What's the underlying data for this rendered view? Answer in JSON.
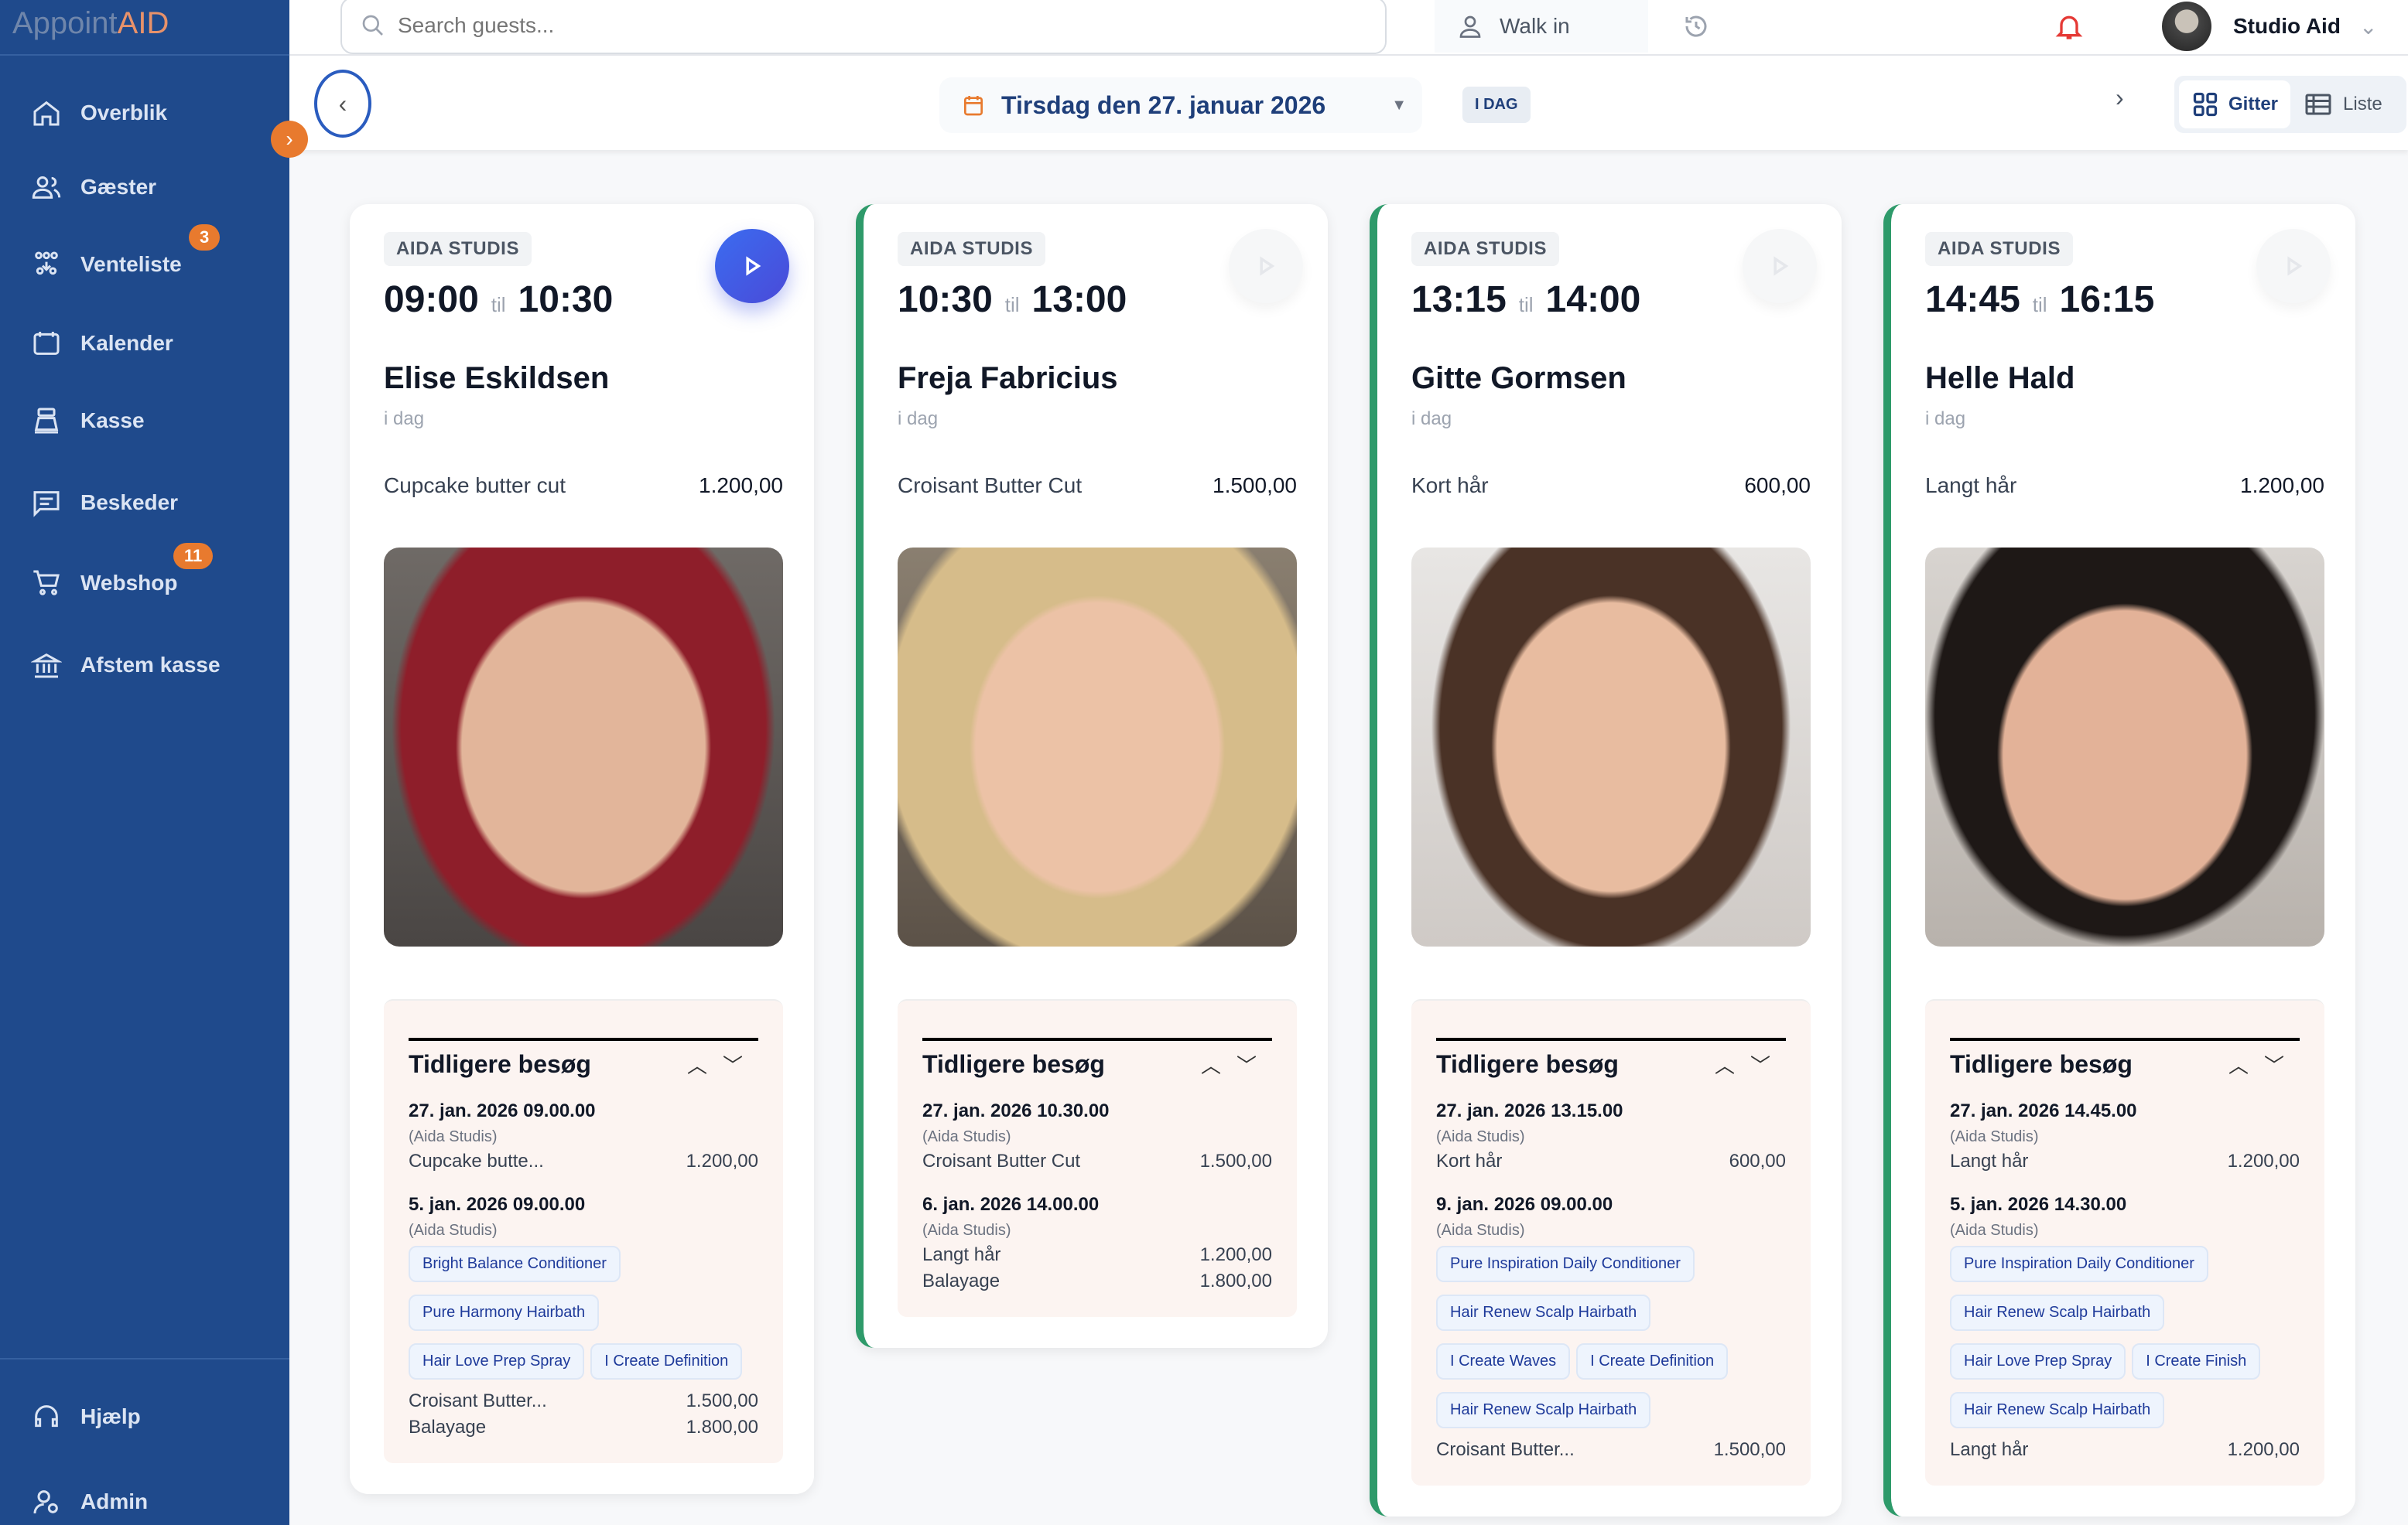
{
  "app": {
    "logo_a": "Appoint",
    "logo_b": "AID"
  },
  "sidebar": {
    "items": [
      {
        "label": "Overblik",
        "icon": "home-icon"
      },
      {
        "label": "Gæster",
        "icon": "users-icon"
      },
      {
        "label": "Venteliste",
        "icon": "waitlist-icon",
        "badge": "3"
      },
      {
        "label": "Kalender",
        "icon": "calendar-icon"
      },
      {
        "label": "Kasse",
        "icon": "cash-register-icon"
      },
      {
        "label": "Beskeder",
        "icon": "message-icon"
      },
      {
        "label": "Webshop",
        "icon": "cart-icon",
        "badge": "11"
      },
      {
        "label": "Afstem kasse",
        "icon": "bank-icon"
      }
    ],
    "bottom": [
      {
        "label": "Hjælp",
        "icon": "help-icon"
      },
      {
        "label": "Admin",
        "icon": "admin-icon"
      }
    ]
  },
  "topbar": {
    "search_placeholder": "Search guests...",
    "walk_in": "Walk in",
    "user": "Studio Aid"
  },
  "subbar": {
    "date": "Tirsdag den 27. januar 2026",
    "today": "I DAG",
    "view_grid": "Gitter",
    "view_list": "Liste"
  },
  "colors": {
    "sidebar": "#1f4a8c",
    "accent": "#e87a2e",
    "done": "#2e9a6a",
    "play": "#3b6cf0"
  },
  "cards": [
    {
      "studio": "AIDA STUDIS",
      "start": "09:00",
      "til": "til",
      "end": "10:30",
      "name": "Elise Eskildsen",
      "when": "i dag",
      "service": "Cupcake butter cut",
      "price": "1.200,00",
      "active": true,
      "done": false,
      "history_title": "Tidligere besøg",
      "visits": [
        {
          "date": "27. jan. 2026 09.00.00",
          "studio": "(Aida Studis)",
          "chips": [],
          "lines": [
            {
              "name": "Cupcake butte...",
              "price": "1.200,00"
            }
          ]
        },
        {
          "date": "5. jan. 2026 09.00.00",
          "studio": "(Aida Studis)",
          "chips": [
            [
              "Bright Balance Conditioner"
            ],
            [
              "Pure Harmony Hairbath"
            ],
            [
              "Hair Love Prep Spray",
              "I Create Definition"
            ]
          ],
          "lines": [
            {
              "name": "Croisant Butter...",
              "price": "1.500,00"
            },
            {
              "name": "Balayage",
              "price": "1.800,00"
            }
          ]
        }
      ]
    },
    {
      "studio": "AIDA STUDIS",
      "start": "10:30",
      "til": "til",
      "end": "13:00",
      "name": "Freja Fabricius",
      "when": "i dag",
      "service": "Croisant Butter Cut",
      "price": "1.500,00",
      "active": false,
      "done": true,
      "history_title": "Tidligere besøg",
      "visits": [
        {
          "date": "27. jan. 2026 10.30.00",
          "studio": "(Aida Studis)",
          "chips": [],
          "lines": [
            {
              "name": "Croisant Butter Cut",
              "price": "1.500,00"
            }
          ]
        },
        {
          "date": "6. jan. 2026 14.00.00",
          "studio": "(Aida Studis)",
          "chips": [],
          "lines": [
            {
              "name": "Langt hår",
              "price": "1.200,00"
            },
            {
              "name": "Balayage",
              "price": "1.800,00"
            }
          ]
        }
      ]
    },
    {
      "studio": "AIDA STUDIS",
      "start": "13:15",
      "til": "til",
      "end": "14:00",
      "name": "Gitte Gormsen",
      "when": "i dag",
      "service": "Kort hår",
      "price": "600,00",
      "active": false,
      "done": true,
      "history_title": "Tidligere besøg",
      "visits": [
        {
          "date": "27. jan. 2026 13.15.00",
          "studio": "(Aida Studis)",
          "chips": [],
          "lines": [
            {
              "name": "Kort hår",
              "price": "600,00"
            }
          ]
        },
        {
          "date": "9. jan. 2026 09.00.00",
          "studio": "(Aida Studis)",
          "chips": [
            [
              "Pure Inspiration Daily Conditioner"
            ],
            [
              "Hair Renew Scalp Hairbath"
            ],
            [
              "I Create Waves",
              "I Create Definition"
            ],
            [
              "Hair Renew Scalp Hairbath"
            ]
          ],
          "lines": [
            {
              "name": "Croisant Butter...",
              "price": "1.500,00"
            }
          ]
        }
      ]
    },
    {
      "studio": "AIDA STUDIS",
      "start": "14:45",
      "til": "til",
      "end": "16:15",
      "name": "Helle Hald",
      "when": "i dag",
      "service": "Langt hår",
      "price": "1.200,00",
      "active": false,
      "done": true,
      "history_title": "Tidligere besøg",
      "visits": [
        {
          "date": "27. jan. 2026 14.45.00",
          "studio": "(Aida Studis)",
          "chips": [],
          "lines": [
            {
              "name": "Langt hår",
              "price": "1.200,00"
            }
          ]
        },
        {
          "date": "5. jan. 2026 14.30.00",
          "studio": "(Aida Studis)",
          "chips": [
            [
              "Pure Inspiration Daily Conditioner"
            ],
            [
              "Hair Renew Scalp Hairbath"
            ],
            [
              "Hair Love Prep Spray",
              "I Create Finish"
            ],
            [
              "Hair Renew Scalp Hairbath"
            ]
          ],
          "lines": [
            {
              "name": "Langt hår",
              "price": "1.200,00"
            }
          ]
        }
      ]
    }
  ]
}
